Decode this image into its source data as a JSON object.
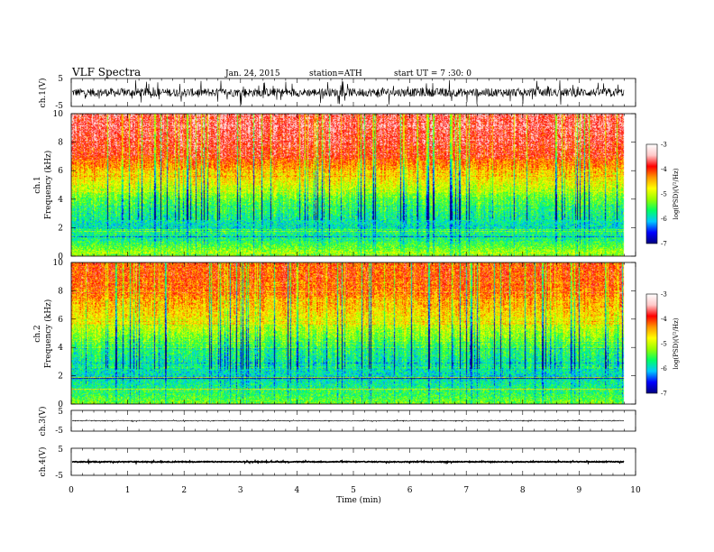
{
  "header": {
    "title": "VLF  Spectra",
    "date": "Jan. 24, 2015",
    "station": "station=ATH",
    "start": "start  UT  =   7 :30: 0"
  },
  "chart_data": [
    {
      "type": "line",
      "name": "ch1-waveform",
      "ylabel": "ch.1(V)",
      "ylim": [
        -5,
        5
      ],
      "yticks": [
        "5",
        "-5"
      ],
      "xlim": [
        0,
        10
      ],
      "signal": {
        "baseline": 0,
        "typical_amplitude": 2.5,
        "spike_amplitude": 4.5,
        "end_min": 9.8
      }
    },
    {
      "type": "heatmap",
      "name": "ch1-spectrogram",
      "ylabel": "ch.1\nFrequency  (kHz)",
      "ylabel_line1": "ch.1",
      "ylabel_line2": "Frequency  (kHz)",
      "ylim": [
        0,
        10
      ],
      "yticks": [
        "0",
        "2",
        "4",
        "6",
        "8",
        "10"
      ],
      "xlim": [
        0,
        10
      ],
      "data_end_min": 9.8,
      "zlabel": "log(PSD)(V²/Hz)",
      "zlim": [
        -7,
        -3
      ],
      "zticks": [
        "-3",
        "-4",
        "-5",
        "-6",
        "-7"
      ],
      "profile": [
        {
          "f": 0.0,
          "z": -5.0
        },
        {
          "f": 1.0,
          "z": -5.6
        },
        {
          "f": 2.0,
          "z": -5.9
        },
        {
          "f": 3.0,
          "z": -5.7
        },
        {
          "f": 4.0,
          "z": -5.4
        },
        {
          "f": 5.0,
          "z": -4.9
        },
        {
          "f": 6.0,
          "z": -4.5
        },
        {
          "f": 7.0,
          "z": -4.0
        },
        {
          "f": 8.0,
          "z": -3.8
        },
        {
          "f": 9.0,
          "z": -3.7
        },
        {
          "f": 10.0,
          "z": -3.7
        }
      ]
    },
    {
      "type": "heatmap",
      "name": "ch2-spectrogram",
      "ylabel": "ch.2\nFrequency  (kHz)",
      "ylabel_line1": "ch.2",
      "ylabel_line2": "Frequency  (kHz)",
      "ylim": [
        0,
        10
      ],
      "yticks": [
        "0",
        "2",
        "4",
        "6",
        "8",
        "10"
      ],
      "xlim": [
        0,
        10
      ],
      "data_end_min": 9.8,
      "zlabel": "log(PSD)(V²/Hz)",
      "zlim": [
        -7,
        -3
      ],
      "zticks": [
        "-3",
        "-4",
        "-5",
        "-6",
        "-7"
      ],
      "profile": [
        {
          "f": 0.0,
          "z": -5.3
        },
        {
          "f": 1.0,
          "z": -5.7
        },
        {
          "f": 2.0,
          "z": -5.9
        },
        {
          "f": 3.0,
          "z": -5.8
        },
        {
          "f": 4.0,
          "z": -5.6
        },
        {
          "f": 5.0,
          "z": -5.2
        },
        {
          "f": 6.0,
          "z": -4.8
        },
        {
          "f": 7.0,
          "z": -4.5
        },
        {
          "f": 8.0,
          "z": -4.2
        },
        {
          "f": 9.0,
          "z": -4.1
        },
        {
          "f": 10.0,
          "z": -4.1
        }
      ]
    },
    {
      "type": "line",
      "name": "ch3-waveform",
      "ylabel": "ch.3(V)",
      "ylim": [
        -5,
        5
      ],
      "yticks": [
        "5",
        "-5"
      ],
      "xlim": [
        0,
        10
      ],
      "signal": {
        "baseline": 0,
        "typical_amplitude": 0.3,
        "spike_amplitude": 0.5,
        "end_min": 9.8
      }
    },
    {
      "type": "line",
      "name": "ch4-waveform",
      "ylabel": "ch.4(V)",
      "ylim": [
        -5,
        5
      ],
      "yticks": [
        "5",
        "-5"
      ],
      "xlim": [
        0,
        10
      ],
      "signal": {
        "baseline": 0,
        "typical_amplitude": 0.25,
        "spike_amplitude": 0.4,
        "end_min": 9.8
      }
    }
  ],
  "xaxis": {
    "label": "Time  (min)",
    "ticks": [
      "0",
      "1",
      "2",
      "3",
      "4",
      "5",
      "6",
      "7",
      "8",
      "9",
      "10"
    ],
    "range": [
      0,
      10
    ]
  },
  "colors": {
    "scale": [
      "#000080",
      "#0000ff",
      "#00c8ff",
      "#00ff64",
      "#96ff00",
      "#ffff00",
      "#ff9600",
      "#ff0000",
      "#ffc8c8",
      "#ffffff"
    ]
  }
}
